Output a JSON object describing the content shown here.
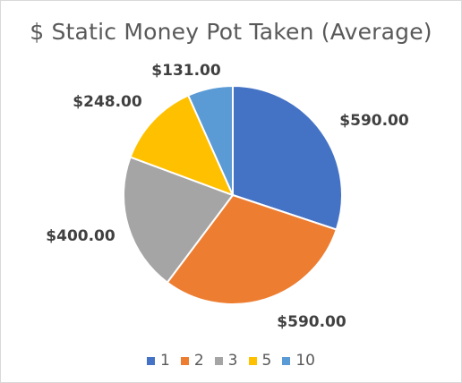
{
  "chart_data": {
    "type": "pie",
    "title": "$ Static Money Pot Taken (Average)",
    "categories": [
      "1",
      "2",
      "3",
      "5",
      "10"
    ],
    "values": [
      590,
      590,
      400,
      248,
      131
    ],
    "data_labels": [
      "$590.00",
      "$590.00",
      "$400.00",
      "$248.00",
      "$131.00"
    ],
    "colors": [
      "#4472c4",
      "#ed7d31",
      "#a5a5a5",
      "#ffc000",
      "#5b9bd5"
    ],
    "legend": "bottom",
    "start_angle": "12 o'clock, clockwise"
  }
}
